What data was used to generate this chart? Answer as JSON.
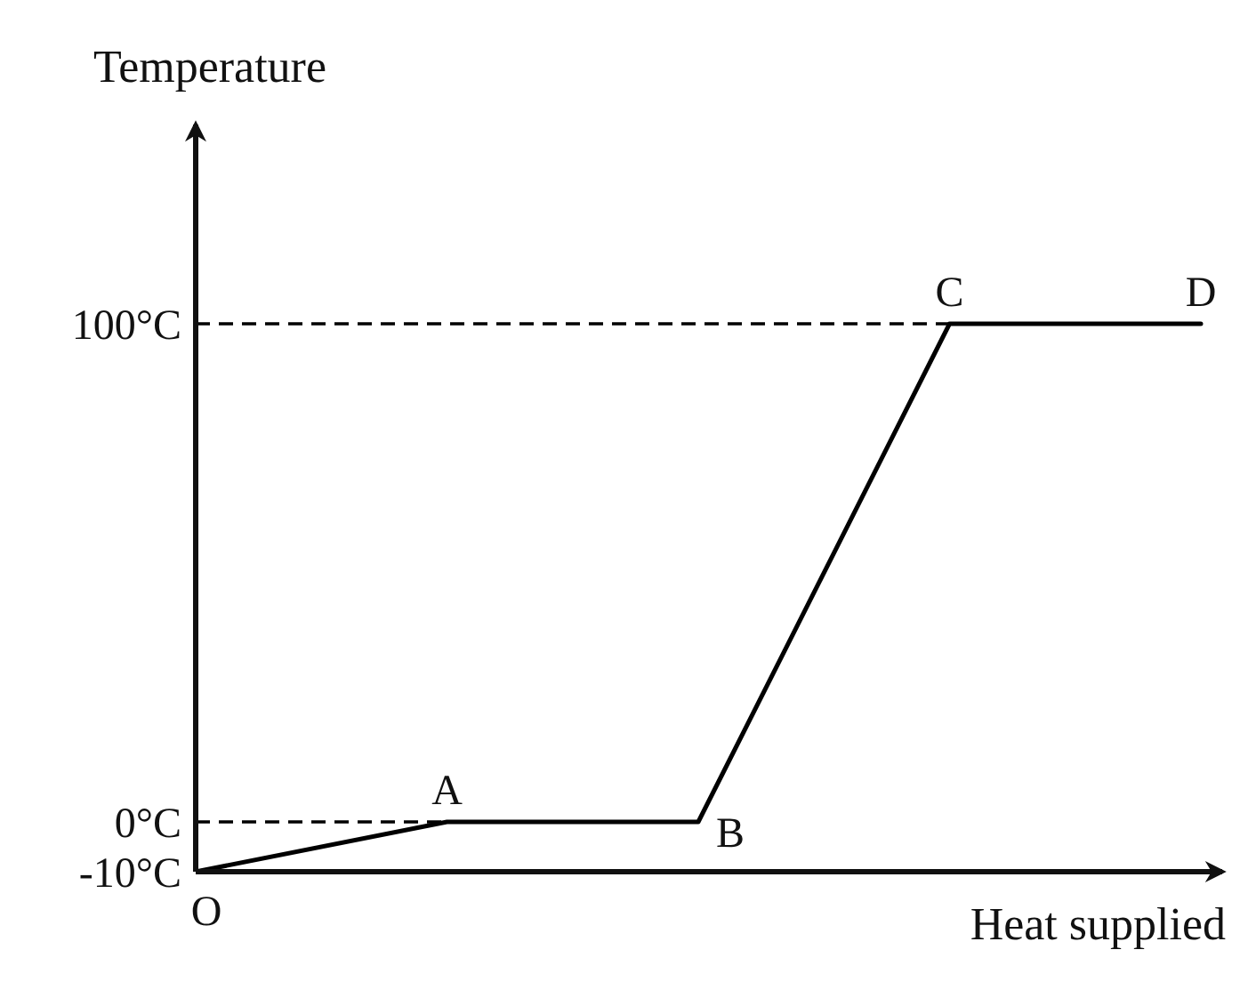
{
  "chart_data": {
    "type": "line",
    "xlabel": "Heat supplied",
    "ylabel": "Temperature",
    "categories": [
      "O",
      "A",
      "B",
      "C",
      "D"
    ],
    "series": [
      {
        "color": "#000000",
        "values": [
          -10,
          0,
          0,
          100,
          100
        ]
      }
    ],
    "ylim": [
      -10,
      140
    ],
    "yticks": [
      {
        "value": -10,
        "label": "-10°C"
      },
      {
        "value": 0,
        "label": "0°C"
      },
      {
        "value": 100,
        "label": "100°C"
      }
    ],
    "ref_lines": [
      {
        "axis": "y",
        "value": 0,
        "color": "#000000",
        "line_style": "dashed"
      },
      {
        "axis": "y",
        "value": 100,
        "color": "#000000",
        "line_style": "dashed"
      }
    ]
  }
}
